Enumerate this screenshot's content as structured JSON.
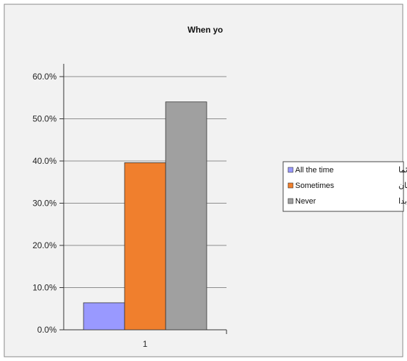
{
  "chart_data": {
    "type": "bar",
    "title": "When yo",
    "categories": [
      "1"
    ],
    "series": [
      {
        "name": "All the time",
        "name_ar": "دائما",
        "values": [
          0.064
        ],
        "color": "#9999ff"
      },
      {
        "name": "Sometimes",
        "name_ar": "بعض الأحيان",
        "values": [
          0.396
        ],
        "color": "#f07f2d"
      },
      {
        "name": "Never",
        "name_ar": "أبدا",
        "values": [
          0.54
        ],
        "color": "#a0a0a0"
      }
    ],
    "y_ticks": [
      "0.0%",
      "10.0%",
      "20.0%",
      "30.0%",
      "40.0%",
      "50.0%",
      "60.0%"
    ],
    "ylim": [
      0,
      0.6
    ],
    "grid": true,
    "legend_position": "right"
  }
}
